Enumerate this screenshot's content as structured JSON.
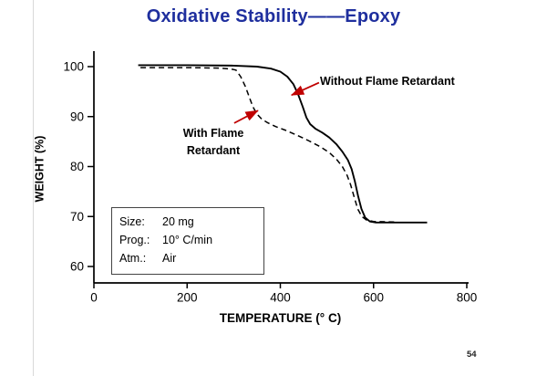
{
  "slide": {
    "title": "Oxidative Stability——Epoxy",
    "page_number": "54"
  },
  "chart_data": {
    "type": "line",
    "title": "Oxidative Stability——Epoxy",
    "xlabel": "TEMPERATURE (° C)",
    "ylabel": "WEIGHT (%)",
    "xlim": [
      0,
      800
    ],
    "ylim": [
      55,
      103
    ],
    "x_ticks": [
      0,
      200,
      400,
      600,
      800
    ],
    "y_ticks": [
      60,
      70,
      80,
      90,
      100
    ],
    "grid": false,
    "legend_position": "none",
    "title_color": "#1F2F9E",
    "arrow_color": "#C00000",
    "series": [
      {
        "name": "Without Flame Retardant",
        "style": "solid",
        "color": "#000000",
        "points": [
          [
            95,
            100.3
          ],
          [
            200,
            100.3
          ],
          [
            300,
            100.2
          ],
          [
            350,
            100.0
          ],
          [
            380,
            99.6
          ],
          [
            400,
            99.0
          ],
          [
            415,
            98.0
          ],
          [
            428,
            96.5
          ],
          [
            438,
            94.5
          ],
          [
            448,
            92.0
          ],
          [
            456,
            89.8
          ],
          [
            464,
            88.5
          ],
          [
            475,
            87.6
          ],
          [
            490,
            86.8
          ],
          [
            505,
            85.8
          ],
          [
            520,
            84.5
          ],
          [
            533,
            83.0
          ],
          [
            545,
            81.3
          ],
          [
            553,
            79.5
          ],
          [
            560,
            77.0
          ],
          [
            567,
            74.0
          ],
          [
            574,
            71.5
          ],
          [
            582,
            69.8
          ],
          [
            592,
            69.0
          ],
          [
            605,
            68.8
          ],
          [
            650,
            68.8
          ],
          [
            715,
            68.8
          ]
        ]
      },
      {
        "name": "With Flame Retardant",
        "style": "dashed",
        "color": "#000000",
        "points": [
          [
            100,
            99.8
          ],
          [
            200,
            99.8
          ],
          [
            270,
            99.7
          ],
          [
            295,
            99.5
          ],
          [
            305,
            99.3
          ],
          [
            315,
            98.0
          ],
          [
            325,
            96.0
          ],
          [
            333,
            94.0
          ],
          [
            341,
            92.0
          ],
          [
            350,
            90.5
          ],
          [
            360,
            89.5
          ],
          [
            372,
            88.8
          ],
          [
            390,
            88.0
          ],
          [
            410,
            87.3
          ],
          [
            435,
            86.3
          ],
          [
            460,
            85.2
          ],
          [
            485,
            84.0
          ],
          [
            505,
            82.8
          ],
          [
            520,
            81.5
          ],
          [
            533,
            80.0
          ],
          [
            543,
            78.3
          ],
          [
            551,
            76.3
          ],
          [
            558,
            74.0
          ],
          [
            566,
            71.5
          ],
          [
            575,
            70.0
          ],
          [
            585,
            69.3
          ],
          [
            600,
            69.0
          ],
          [
            645,
            68.9
          ]
        ]
      }
    ],
    "annotations": [
      {
        "text": "Without Flame Retardant",
        "target_series": "Without Flame Retardant",
        "arrow": {
          "from_x": 483,
          "from_y": 96.8,
          "to_x": 424,
          "to_y": 94.3
        }
      },
      {
        "text": "With Flame\nRetardant",
        "target_series": "With Flame Retardant",
        "arrow": {
          "from_x": 301,
          "from_y": 88.7,
          "to_x": 352,
          "to_y": 91.2
        }
      }
    ],
    "info_rows": [
      {
        "label": "Size:",
        "value": "20 mg"
      },
      {
        "label": "Prog.:",
        "value": "10° C/min"
      },
      {
        "label": "Atm.:",
        "value": "Air"
      }
    ]
  }
}
